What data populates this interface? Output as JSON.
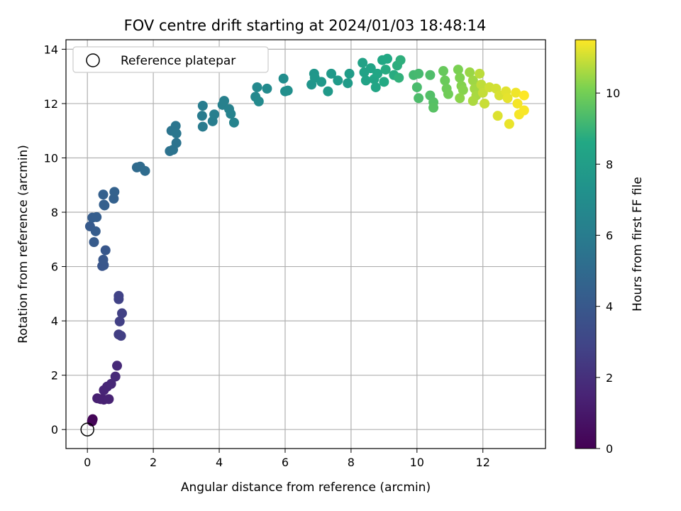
{
  "chart_data": {
    "type": "scatter",
    "title": "FOV centre drift starting at 2024/01/03 18:48:14",
    "xlabel": "Angular distance from reference (arcmin)",
    "ylabel": "Rotation from reference (arcmin)",
    "xlim": [
      -0.65,
      13.9
    ],
    "ylim": [
      -0.7,
      14.35
    ],
    "xticks": [
      0,
      2,
      4,
      6,
      8,
      10,
      12
    ],
    "yticks": [
      0,
      2,
      4,
      6,
      8,
      10,
      12,
      14
    ],
    "grid": true,
    "legend": {
      "placement": "top-left",
      "entries": [
        "Reference platepar"
      ]
    },
    "reference_point": {
      "x": 0,
      "y": 0,
      "name": "Reference platepar"
    },
    "colorbar": {
      "label": "Hours from first FF file",
      "range": [
        0,
        11.5
      ],
      "ticks": [
        0,
        2,
        4,
        6,
        8,
        10
      ],
      "colormap": "viridis"
    },
    "points": [
      [
        0.15,
        0.35,
        0.05
      ],
      [
        0.14,
        0.3,
        0.1
      ],
      [
        0.16,
        0.38,
        0.15
      ],
      [
        0.3,
        1.15,
        1.3
      ],
      [
        0.4,
        1.12,
        1.35
      ],
      [
        0.5,
        1.1,
        1.4
      ],
      [
        0.65,
        1.12,
        1.45
      ],
      [
        0.5,
        1.45,
        1.55
      ],
      [
        0.6,
        1.58,
        1.6
      ],
      [
        0.72,
        1.68,
        1.65
      ],
      [
        0.85,
        1.95,
        1.7
      ],
      [
        0.9,
        2.35,
        1.75
      ],
      [
        0.95,
        3.5,
        2.6
      ],
      [
        1.02,
        3.45,
        2.65
      ],
      [
        0.98,
        3.98,
        2.7
      ],
      [
        1.05,
        4.28,
        2.75
      ],
      [
        0.95,
        4.8,
        2.8
      ],
      [
        0.95,
        4.92,
        2.85
      ],
      [
        0.45,
        6.02,
        3.8
      ],
      [
        0.5,
        6.05,
        3.85
      ],
      [
        0.48,
        6.25,
        3.9
      ],
      [
        0.55,
        6.6,
        3.95
      ],
      [
        0.08,
        7.48,
        4.1
      ],
      [
        0.2,
        6.9,
        4.15
      ],
      [
        0.25,
        7.3,
        4.2
      ],
      [
        0.15,
        7.8,
        4.25
      ],
      [
        0.28,
        7.82,
        4.3
      ],
      [
        0.5,
        8.28,
        4.35
      ],
      [
        0.52,
        8.25,
        4.4
      ],
      [
        0.48,
        8.65,
        4.45
      ],
      [
        0.8,
        8.5,
        4.5
      ],
      [
        0.82,
        8.75,
        4.55
      ],
      [
        1.5,
        9.65,
        5.0
      ],
      [
        1.6,
        9.68,
        5.05
      ],
      [
        1.75,
        9.52,
        5.1
      ],
      [
        2.5,
        10.25,
        5.4
      ],
      [
        2.6,
        10.3,
        5.45
      ],
      [
        2.7,
        10.55,
        5.5
      ],
      [
        2.55,
        11.0,
        5.55
      ],
      [
        2.68,
        11.18,
        5.6
      ],
      [
        2.7,
        10.9,
        5.65
      ],
      [
        3.5,
        11.15,
        5.9
      ],
      [
        3.48,
        11.55,
        5.95
      ],
      [
        3.5,
        11.92,
        6.0
      ],
      [
        3.8,
        11.35,
        6.05
      ],
      [
        3.85,
        11.6,
        6.1
      ],
      [
        4.1,
        11.95,
        6.2
      ],
      [
        4.15,
        12.1,
        6.25
      ],
      [
        4.3,
        11.8,
        6.3
      ],
      [
        4.35,
        11.62,
        6.35
      ],
      [
        4.45,
        11.3,
        6.4
      ],
      [
        5.1,
        12.25,
        6.7
      ],
      [
        5.15,
        12.6,
        6.75
      ],
      [
        5.2,
        12.08,
        6.8
      ],
      [
        5.45,
        12.55,
        6.85
      ],
      [
        5.95,
        12.92,
        7.0
      ],
      [
        6.0,
        12.45,
        7.05
      ],
      [
        6.08,
        12.48,
        7.1
      ],
      [
        6.8,
        12.7,
        7.5
      ],
      [
        6.88,
        13.1,
        7.55
      ],
      [
        6.9,
        12.95,
        7.6
      ],
      [
        7.1,
        12.8,
        7.65
      ],
      [
        7.3,
        12.45,
        7.7
      ],
      [
        7.4,
        13.1,
        7.75
      ],
      [
        7.6,
        12.85,
        7.8
      ],
      [
        7.9,
        12.75,
        7.85
      ],
      [
        7.95,
        13.1,
        7.9
      ],
      [
        8.35,
        13.5,
        8.2
      ],
      [
        8.4,
        13.15,
        8.25
      ],
      [
        8.45,
        12.85,
        8.3
      ],
      [
        8.6,
        13.3,
        8.35
      ],
      [
        8.7,
        12.9,
        8.4
      ],
      [
        8.75,
        12.6,
        8.45
      ],
      [
        8.8,
        13.1,
        8.5
      ],
      [
        8.95,
        13.6,
        8.55
      ],
      [
        9.1,
        13.65,
        8.6
      ],
      [
        9.0,
        12.8,
        8.65
      ],
      [
        9.05,
        13.25,
        8.7
      ],
      [
        9.3,
        13.05,
        8.75
      ],
      [
        9.4,
        13.4,
        8.8
      ],
      [
        9.5,
        13.6,
        8.85
      ],
      [
        9.45,
        12.95,
        8.9
      ],
      [
        9.9,
        13.05,
        9.2
      ],
      [
        10.05,
        13.1,
        9.25
      ],
      [
        10.0,
        12.6,
        9.3
      ],
      [
        10.05,
        12.2,
        9.35
      ],
      [
        10.4,
        13.05,
        9.4
      ],
      [
        10.4,
        12.3,
        9.45
      ],
      [
        10.5,
        12.05,
        9.5
      ],
      [
        10.5,
        11.85,
        9.55
      ],
      [
        10.8,
        13.2,
        9.8
      ],
      [
        10.85,
        12.85,
        9.85
      ],
      [
        10.9,
        12.55,
        9.9
      ],
      [
        10.95,
        12.35,
        9.95
      ],
      [
        11.25,
        13.25,
        10.1
      ],
      [
        11.3,
        12.95,
        10.15
      ],
      [
        11.35,
        12.65,
        10.2
      ],
      [
        11.4,
        12.5,
        10.25
      ],
      [
        11.3,
        12.2,
        10.3
      ],
      [
        11.6,
        13.15,
        10.45
      ],
      [
        11.7,
        12.85,
        10.5
      ],
      [
        11.75,
        12.55,
        10.55
      ],
      [
        11.8,
        12.3,
        10.6
      ],
      [
        11.7,
        12.1,
        10.65
      ],
      [
        11.9,
        13.1,
        10.8
      ],
      [
        11.95,
        12.7,
        10.85
      ],
      [
        12.0,
        12.4,
        10.9
      ],
      [
        12.05,
        12.0,
        10.95
      ],
      [
        12.2,
        12.6,
        11.0
      ],
      [
        12.4,
        12.55,
        11.05
      ],
      [
        12.5,
        12.3,
        11.1
      ],
      [
        12.45,
        11.55,
        11.15
      ],
      [
        12.7,
        12.45,
        11.2
      ],
      [
        12.75,
        12.2,
        11.25
      ],
      [
        12.8,
        11.25,
        11.3
      ],
      [
        13.0,
        12.4,
        11.35
      ],
      [
        13.05,
        12.0,
        11.4
      ],
      [
        13.1,
        11.6,
        11.42
      ],
      [
        13.25,
        11.75,
        11.45
      ],
      [
        13.25,
        12.3,
        11.5
      ]
    ]
  }
}
